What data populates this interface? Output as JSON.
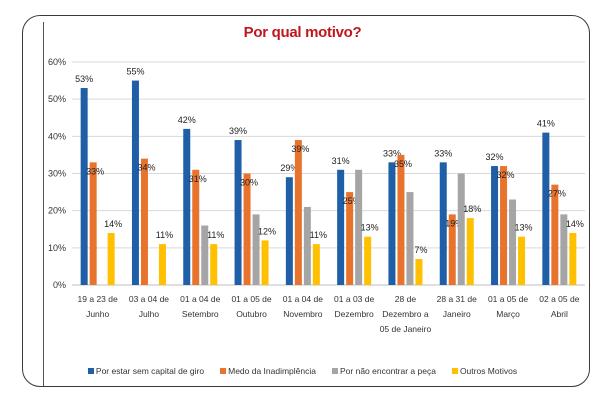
{
  "chart_data": {
    "type": "bar",
    "title": "Por qual motivo?",
    "xlabel": "",
    "ylabel": "",
    "ylim": [
      0,
      60
    ],
    "yticks": [
      "0%",
      "10%",
      "20%",
      "30%",
      "40%",
      "50%",
      "60%"
    ],
    "ytick_values": [
      0,
      10,
      20,
      30,
      40,
      50,
      60
    ],
    "grid": true,
    "legend_position": "bottom",
    "categories": [
      [
        "19 a 23 de",
        "Junho"
      ],
      [
        "03 a 04 de",
        "Julho"
      ],
      [
        "01 a 04 de",
        "Setembro"
      ],
      [
        "01 a 05 de",
        "Outubro"
      ],
      [
        "01 a 04 de",
        "Novembro"
      ],
      [
        "01 a 03 de",
        "Dezembro"
      ],
      [
        "28 de",
        "Dezembro a",
        "05 de Janeiro"
      ],
      [
        "28 a 31 de",
        "Janeiro"
      ],
      [
        "01 a 05 de",
        "Março"
      ],
      [
        "02 a 05 de",
        "Abril"
      ]
    ],
    "series": [
      {
        "name": "Por estar sem capital de giro",
        "color": "#1F5FA8",
        "values": [
          53,
          55,
          42,
          39,
          29,
          31,
          33,
          33,
          32,
          41
        ],
        "labels": [
          "53%",
          "55%",
          "42%",
          "39%",
          "29%",
          "31%",
          "33%",
          "33%",
          "32%",
          "41%"
        ]
      },
      {
        "name": "Medo da Inadimplência",
        "color": "#E8732C",
        "values": [
          33,
          34,
          31,
          30,
          39,
          25,
          35,
          19,
          32,
          27
        ],
        "labels": [
          "33%",
          "34%",
          "31%",
          "30%",
          "39%",
          "25%",
          "35%",
          "19%",
          "32%",
          "27%"
        ]
      },
      {
        "name": "Por não encontrar a peça",
        "color": "#A5A5A5",
        "values": [
          0,
          0,
          16,
          19,
          21,
          31,
          25,
          30,
          23,
          19
        ],
        "labels": [
          "",
          "",
          "",
          "",
          "",
          "",
          "",
          "",
          "",
          ""
        ]
      },
      {
        "name": "Outros Motivos",
        "color": "#FFC000",
        "values": [
          14,
          11,
          11,
          12,
          11,
          13,
          7,
          18,
          13,
          14
        ],
        "labels": [
          "14%",
          "11%",
          "11%",
          "12%",
          "11%",
          "13%",
          "7%",
          "18%",
          "13%",
          "14%"
        ]
      }
    ]
  }
}
